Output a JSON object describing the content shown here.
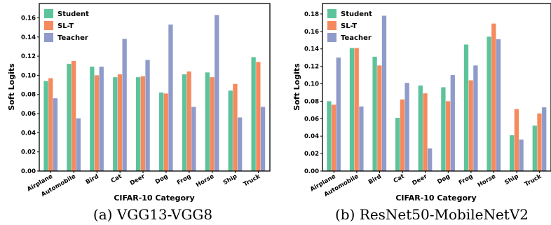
{
  "colors": {
    "Student": "#5dc39a",
    "SL-T": "#f58a5f",
    "Teacher": "#8e9bcb"
  },
  "chart_data": [
    {
      "type": "bar",
      "caption": "(a) VGG13-VGG8",
      "xlabel": "CIFAR-10 Category",
      "ylabel": "Soft Logits",
      "categories": [
        "Airplane",
        "Automobile",
        "Bird",
        "Cat",
        "Deer",
        "Dog",
        "Frog",
        "Horse",
        "Ship",
        "Truck"
      ],
      "ylim": [
        0,
        0.175
      ],
      "yticks": [
        "0.00",
        "0.02",
        "0.04",
        "0.06",
        "0.08",
        "0.10",
        "0.12",
        "0.14",
        "0.16"
      ],
      "legend": "top-left",
      "grid": false,
      "series": [
        {
          "name": "Student",
          "values": [
            0.094,
            0.112,
            0.109,
            0.098,
            0.098,
            0.082,
            0.101,
            0.103,
            0.084,
            0.119
          ]
        },
        {
          "name": "SL-T",
          "values": [
            0.097,
            0.115,
            0.1,
            0.101,
            0.099,
            0.081,
            0.104,
            0.098,
            0.091,
            0.114
          ]
        },
        {
          "name": "Teacher",
          "values": [
            0.076,
            0.055,
            0.109,
            0.138,
            0.116,
            0.153,
            0.067,
            0.163,
            0.056,
            0.067
          ]
        }
      ]
    },
    {
      "type": "bar",
      "caption": "(b) ResNet50-MobileNetV2",
      "xlabel": "CIFAR-10 Category",
      "ylabel": "Soft Logits",
      "categories": [
        "Airplane",
        "Automobile",
        "Bird",
        "Cat",
        "Deer",
        "Dog",
        "Frog",
        "Horse",
        "Ship",
        "Truck"
      ],
      "ylim": [
        0,
        0.192
      ],
      "yticks": [
        "0.00",
        "0.02",
        "0.04",
        "0.06",
        "0.08",
        "0.10",
        "0.12",
        "0.14",
        "0.16",
        "0.18"
      ],
      "legend": "top-left",
      "grid": false,
      "series": [
        {
          "name": "Student",
          "values": [
            0.08,
            0.141,
            0.131,
            0.061,
            0.098,
            0.096,
            0.145,
            0.154,
            0.041,
            0.052
          ]
        },
        {
          "name": "SL-T",
          "values": [
            0.076,
            0.141,
            0.121,
            0.082,
            0.089,
            0.08,
            0.104,
            0.169,
            0.071,
            0.066
          ]
        },
        {
          "name": "Teacher",
          "values": [
            0.13,
            0.074,
            0.178,
            0.101,
            0.026,
            0.11,
            0.121,
            0.151,
            0.036,
            0.073
          ]
        }
      ]
    }
  ]
}
